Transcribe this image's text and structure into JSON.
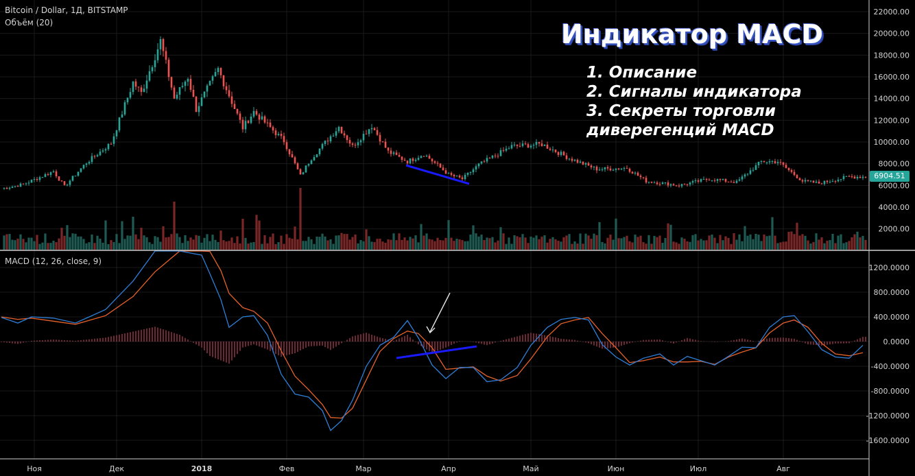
{
  "header": {
    "symbol_title": "Bitcoin / Dollar, 1Д, BITSTAMP",
    "volume_label": "Объём (20)",
    "macd_label": "MACD (12, 26, close, 9)"
  },
  "overlay": {
    "headline": "Индикатор MACD",
    "items": [
      "1. Описание",
      "2. Сигналы индикатора",
      "3. Секреты торговли",
      "диверегенций MACD"
    ]
  },
  "price_tag": "6904.51",
  "colors": {
    "up": "#26a69a",
    "down": "#ef5350",
    "macd_line": "#2e7fd8",
    "signal_line": "#e8622a",
    "histogram": "#d8506a",
    "divergence_line": "#1a1aff",
    "grid": "#1a1a1a",
    "background": "#000000"
  },
  "chart_data": [
    {
      "type": "candlestick",
      "title": "Bitcoin / Dollar, 1Д, BITSTAMP",
      "x_ticks": [
        "Ноя",
        "Дек",
        "2018",
        "Фев",
        "Мар",
        "Апр",
        "Май",
        "Июн",
        "Июл",
        "Авг"
      ],
      "y_ticks": [
        2000,
        4000,
        6000,
        8000,
        10000,
        12000,
        14000,
        16000,
        18000,
        20000,
        22000
      ],
      "y_tick_labels": [
        "2000.00",
        "4000.00",
        "6000.00",
        "8000.00",
        "10000.00",
        "12000.00",
        "14000.00",
        "16000.00",
        "18000.00",
        "20000.00",
        "22000.00"
      ],
      "ylim": [
        0,
        23000
      ],
      "last_price": 6904.51,
      "close_anchors": [
        [
          "2017-10-20",
          5700
        ],
        [
          "2017-10-28",
          6100
        ],
        [
          "2017-11-08",
          7300
        ],
        [
          "2017-11-12",
          5900
        ],
        [
          "2017-11-20",
          8100
        ],
        [
          "2017-11-29",
          9900
        ],
        [
          "2017-12-07",
          15500
        ],
        [
          "2017-12-10",
          14500
        ],
        [
          "2017-12-17",
          19300
        ],
        [
          "2017-12-22",
          14000
        ],
        [
          "2017-12-27",
          16000
        ],
        [
          "2017-12-30",
          13000
        ],
        [
          "2018-01-07",
          16700
        ],
        [
          "2018-01-16",
          11300
        ],
        [
          "2018-01-20",
          12800
        ],
        [
          "2018-01-31",
          10100
        ],
        [
          "2018-02-06",
          6900
        ],
        [
          "2018-02-10",
          8500
        ],
        [
          "2018-02-20",
          11400
        ],
        [
          "2018-02-25",
          9600
        ],
        [
          "2018-03-04",
          11500
        ],
        [
          "2018-03-10",
          9100
        ],
        [
          "2018-03-17",
          8200
        ],
        [
          "2018-03-23",
          8900
        ],
        [
          "2018-04-01",
          7000
        ],
        [
          "2018-04-06",
          6600
        ],
        [
          "2018-04-12",
          7900
        ],
        [
          "2018-04-24",
          9600
        ],
        [
          "2018-05-05",
          9800
        ],
        [
          "2018-05-15",
          8500
        ],
        [
          "2018-05-25",
          7500
        ],
        [
          "2018-06-05",
          7600
        ],
        [
          "2018-06-12",
          6400
        ],
        [
          "2018-06-24",
          6000
        ],
        [
          "2018-07-05",
          6600
        ],
        [
          "2018-07-15",
          6300
        ],
        [
          "2018-07-24",
          8200
        ],
        [
          "2018-07-30",
          8200
        ],
        [
          "2018-08-08",
          6400
        ],
        [
          "2018-08-14",
          6200
        ],
        [
          "2018-08-25",
          6800
        ]
      ]
    },
    {
      "type": "bar",
      "title": "Объём (20)",
      "description_of_values": "daily volume, same dates as the price series",
      "spike_dates": [
        "2017-12-07",
        "2017-12-22",
        "2018-01-16",
        "2018-02-06"
      ],
      "ylim": [
        0,
        23000
      ]
    },
    {
      "type": "line",
      "title": "MACD (12, 26, close, 9)",
      "x_ticks": [
        "Ноя",
        "Дек",
        "2018",
        "Фев",
        "Мар",
        "Апр",
        "Май",
        "Июн",
        "Июл",
        "Авг"
      ],
      "y_ticks": [
        -1600,
        -1200,
        -800,
        -400,
        0,
        400,
        800,
        1200
      ],
      "y_tick_labels": [
        "-1600.0000",
        "-1200.0000",
        "-800.0000",
        "-400.0000",
        "0.0000",
        "400.0000",
        "800.0000",
        "1200.0000"
      ],
      "ylim": [
        -1800,
        1450
      ],
      "series": [
        {
          "name": "MACD",
          "values": [
            [
              0,
              390
            ],
            [
              6,
              300
            ],
            [
              11,
              400
            ],
            [
              19,
              380
            ],
            [
              27,
              300
            ],
            [
              38,
              520
            ],
            [
              48,
              980
            ],
            [
              56,
              1500
            ],
            [
              65,
              1650
            ],
            [
              73,
              1400
            ],
            [
              76,
              1100
            ],
            [
              80,
              680
            ],
            [
              83,
              230
            ],
            [
              88,
              400
            ],
            [
              92,
              420
            ],
            [
              97,
              100
            ],
            [
              102,
              -530
            ],
            [
              107,
              -850
            ],
            [
              112,
              -900
            ],
            [
              117,
              -1120
            ],
            [
              120,
              -1440
            ],
            [
              124,
              -1280
            ],
            [
              128,
              -950
            ],
            [
              133,
              -400
            ],
            [
              138,
              -60
            ],
            [
              143,
              70
            ],
            [
              148,
              340
            ],
            [
              152,
              60
            ],
            [
              157,
              -380
            ],
            [
              162,
              -600
            ],
            [
              167,
              -420
            ],
            [
              172,
              -420
            ],
            [
              177,
              -650
            ],
            [
              182,
              -620
            ],
            [
              188,
              -420
            ],
            [
              193,
              -60
            ],
            [
              199,
              230
            ],
            [
              204,
              360
            ],
            [
              209,
              390
            ],
            [
              214,
              350
            ],
            [
              219,
              -50
            ],
            [
              224,
              -250
            ],
            [
              229,
              -380
            ],
            [
              234,
              -270
            ],
            [
              240,
              -200
            ],
            [
              245,
              -380
            ],
            [
              250,
              -240
            ],
            [
              255,
              -310
            ],
            [
              260,
              -380
            ],
            [
              265,
              -240
            ],
            [
              270,
              -90
            ],
            [
              275,
              -100
            ],
            [
              280,
              230
            ],
            [
              285,
              400
            ],
            [
              289,
              420
            ],
            [
              294,
              160
            ],
            [
              299,
              -130
            ],
            [
              304,
              -250
            ],
            [
              309,
              -270
            ],
            [
              314,
              -60
            ]
          ]
        },
        {
          "name": "Signal",
          "values": [
            [
              0,
              400
            ],
            [
              6,
              360
            ],
            [
              11,
              380
            ],
            [
              19,
              330
            ],
            [
              27,
              280
            ],
            [
              38,
              420
            ],
            [
              48,
              730
            ],
            [
              56,
              1130
            ],
            [
              65,
              1480
            ],
            [
              73,
              1550
            ],
            [
              76,
              1460
            ],
            [
              80,
              1150
            ],
            [
              83,
              780
            ],
            [
              88,
              550
            ],
            [
              92,
              490
            ],
            [
              97,
              300
            ],
            [
              102,
              -150
            ],
            [
              107,
              -560
            ],
            [
              112,
              -780
            ],
            [
              117,
              -1020
            ],
            [
              120,
              -1230
            ],
            [
              124,
              -1240
            ],
            [
              128,
              -1080
            ],
            [
              133,
              -620
            ],
            [
              138,
              -160
            ],
            [
              143,
              50
            ],
            [
              148,
              170
            ],
            [
              152,
              130
            ],
            [
              157,
              -100
            ],
            [
              162,
              -450
            ],
            [
              167,
              -430
            ],
            [
              172,
              -410
            ],
            [
              177,
              -560
            ],
            [
              182,
              -640
            ],
            [
              188,
              -550
            ],
            [
              193,
              -280
            ],
            [
              199,
              80
            ],
            [
              204,
              290
            ],
            [
              209,
              350
            ],
            [
              214,
              390
            ],
            [
              219,
              130
            ],
            [
              224,
              -100
            ],
            [
              229,
              -340
            ],
            [
              234,
              -310
            ],
            [
              240,
              -250
            ],
            [
              245,
              -330
            ],
            [
              250,
              -330
            ],
            [
              255,
              -320
            ],
            [
              260,
              -370
            ],
            [
              265,
              -250
            ],
            [
              270,
              -170
            ],
            [
              275,
              -100
            ],
            [
              280,
              140
            ],
            [
              285,
              300
            ],
            [
              289,
              350
            ],
            [
              294,
              230
            ],
            [
              299,
              -30
            ],
            [
              304,
              -200
            ],
            [
              309,
              -230
            ],
            [
              314,
              -180
            ]
          ]
        }
      ]
    }
  ]
}
